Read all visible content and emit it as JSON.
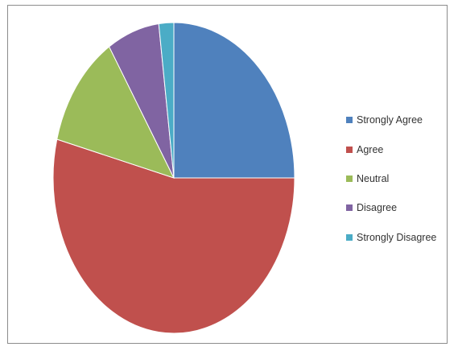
{
  "chart_data": {
    "type": "pie",
    "title": "",
    "legend_position": "right",
    "slices": [
      {
        "label": "Strongly Agree",
        "value": 25,
        "color": "#4f81bd"
      },
      {
        "label": "Agree",
        "value": 54,
        "color": "#c0504d"
      },
      {
        "label": "Neutral",
        "value": 12,
        "color": "#9bbb59"
      },
      {
        "label": "Disagree",
        "value": 7,
        "color": "#8064a2"
      },
      {
        "label": "Strongly Disagree",
        "value": 2,
        "color": "#4bacc6"
      }
    ]
  }
}
